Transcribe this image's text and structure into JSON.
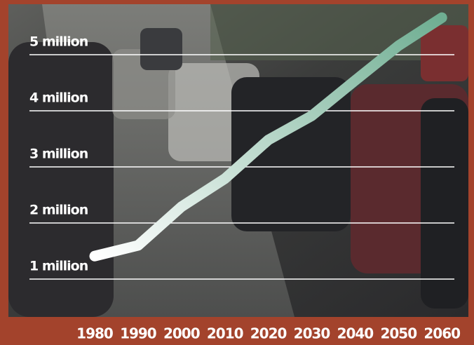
{
  "chart_data": {
    "type": "line",
    "categories": [
      "1980",
      "1990",
      "2000",
      "2010",
      "2020",
      "2030",
      "2040",
      "2050",
      "2060"
    ],
    "values": [
      1.41,
      1.6,
      2.29,
      2.79,
      3.48,
      3.91,
      4.54,
      5.16,
      5.66
    ],
    "color": "#6fae92",
    "ylim": [
      0.5,
      5.75
    ],
    "yticks": [
      {
        "value": 1,
        "label": "1 million"
      },
      {
        "value": 2,
        "label": "2 million"
      },
      {
        "value": 3,
        "label": "3 million"
      },
      {
        "value": 4,
        "label": "4 million"
      },
      {
        "value": 5,
        "label": "5 million"
      }
    ],
    "grid": true
  }
}
